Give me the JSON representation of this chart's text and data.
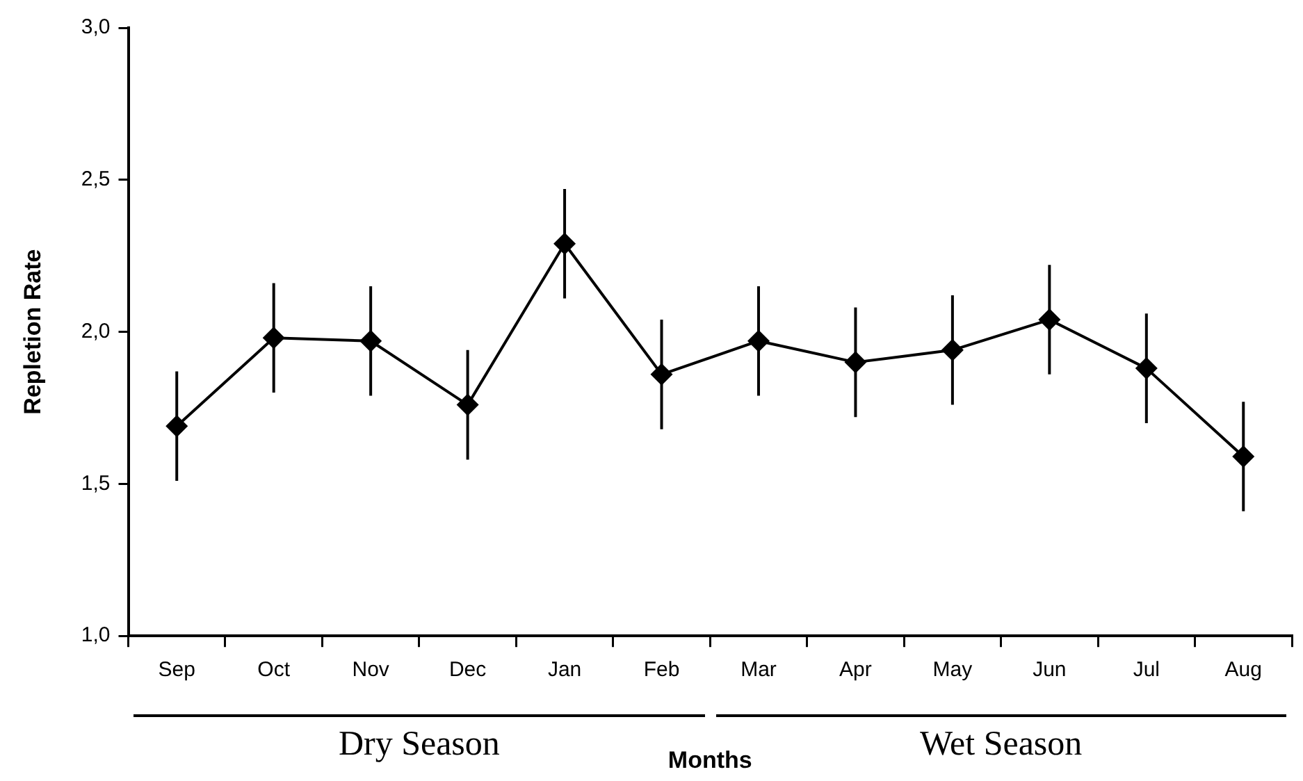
{
  "chart_data": {
    "type": "line",
    "xlabel": "Months",
    "ylabel": "Repletion Rate",
    "categories": [
      "Sep",
      "Oct",
      "Nov",
      "Dec",
      "Jan",
      "Feb",
      "Mar",
      "Apr",
      "May",
      "Jun",
      "Jul",
      "Aug"
    ],
    "series": [
      {
        "color": "#000000",
        "values": [
          1.69,
          1.98,
          1.97,
          1.76,
          2.29,
          1.86,
          1.97,
          1.9,
          1.94,
          2.04,
          1.88,
          1.59
        ],
        "errors": [
          0.18,
          0.18,
          0.18,
          0.18,
          0.18,
          0.18,
          0.18,
          0.18,
          0.18,
          0.18,
          0.18,
          0.18
        ]
      }
    ],
    "ylim": [
      1,
      3
    ],
    "yticks": [
      {
        "value": 1,
        "label": "1,0"
      },
      {
        "value": 1.5,
        "label": "1,5"
      },
      {
        "value": 2,
        "label": "2,0"
      },
      {
        "value": 2.5,
        "label": "2,5"
      },
      {
        "value": 3,
        "label": "3,0"
      }
    ],
    "grid": false,
    "legend": false,
    "marker": "diamond",
    "line_style": "solid",
    "annotations": [
      "Dry Season",
      "Wet Season"
    ]
  }
}
